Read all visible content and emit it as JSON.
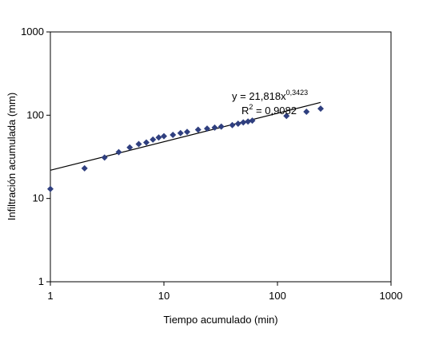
{
  "chart_data": {
    "type": "scatter",
    "title": "",
    "xlabel": "Tiempo acumulado (min)",
    "ylabel": "Infiltración acumulada (mm)",
    "xscale": "log",
    "yscale": "log",
    "xlim": [
      1,
      1000
    ],
    "ylim": [
      1,
      1000
    ],
    "x_ticks": [
      "1",
      "10",
      "100",
      "1000"
    ],
    "y_ticks": [
      "1",
      "10",
      "100",
      "1000"
    ],
    "grid": false,
    "legend": "none",
    "marker_color": "#2f3f7f",
    "trendline_color": "#000000",
    "trendline": {
      "type": "power",
      "a": 21.818,
      "b": 0.3423,
      "x_range": [
        1,
        240
      ]
    },
    "annotation": {
      "equation_prefix": "y = 21,818x",
      "equation_exponent": "0,3423",
      "r2_prefix": "R",
      "r2_exponent": "2",
      "r2_value": " = 0,9082"
    },
    "points": [
      {
        "x": 1,
        "y": 13
      },
      {
        "x": 2,
        "y": 23
      },
      {
        "x": 3,
        "y": 31
      },
      {
        "x": 4,
        "y": 36
      },
      {
        "x": 5,
        "y": 41
      },
      {
        "x": 6,
        "y": 45
      },
      {
        "x": 7,
        "y": 47
      },
      {
        "x": 8,
        "y": 51
      },
      {
        "x": 9,
        "y": 54
      },
      {
        "x": 10,
        "y": 56
      },
      {
        "x": 12,
        "y": 58
      },
      {
        "x": 14,
        "y": 61
      },
      {
        "x": 16,
        "y": 63
      },
      {
        "x": 20,
        "y": 67
      },
      {
        "x": 24,
        "y": 69
      },
      {
        "x": 28,
        "y": 71
      },
      {
        "x": 32,
        "y": 73
      },
      {
        "x": 40,
        "y": 76
      },
      {
        "x": 45,
        "y": 79
      },
      {
        "x": 50,
        "y": 82
      },
      {
        "x": 55,
        "y": 84
      },
      {
        "x": 60,
        "y": 86
      },
      {
        "x": 120,
        "y": 98
      },
      {
        "x": 180,
        "y": 110
      },
      {
        "x": 240,
        "y": 120
      }
    ]
  }
}
